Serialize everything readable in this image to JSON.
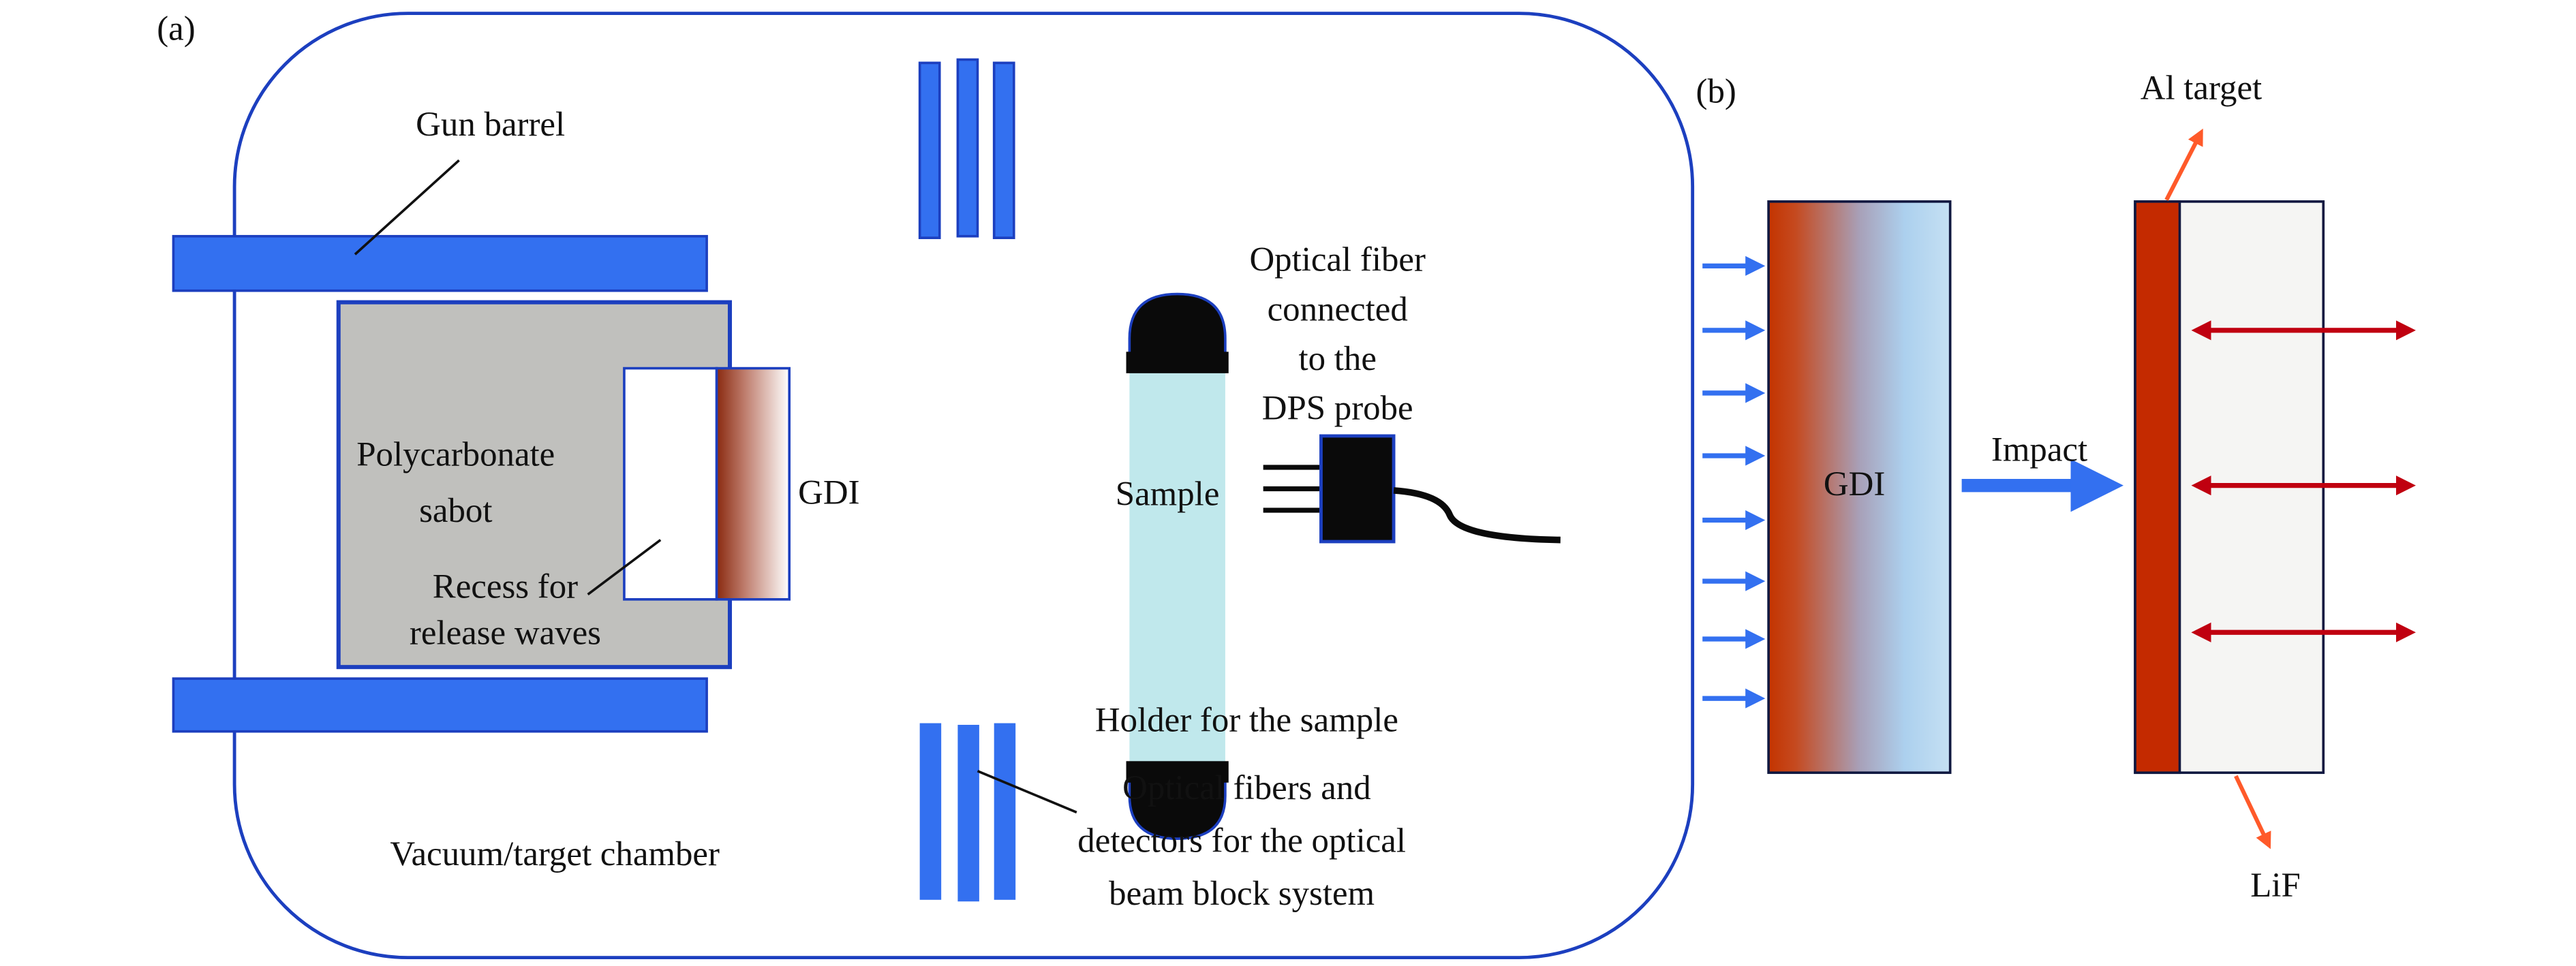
{
  "panel_a": {
    "label": "(a)",
    "gun_barrel": "Gun barrel",
    "sabot_line1": "Polycarbonate",
    "sabot_line2": "sabot",
    "recess_line1": "Recess for",
    "recess_line2": "release waves",
    "gdi": "GDI",
    "sample": "Sample",
    "fiber_line1": "Optical fiber",
    "fiber_line2": "connected",
    "fiber_line3": "to the",
    "fiber_line4": "DPS probe",
    "holder": "Holder for the sample",
    "detectors_line1": "Optical fibers and",
    "detectors_line2": "detectors for the optical",
    "detectors_line3": "beam block system",
    "chamber": "Vacuum/target chamber"
  },
  "panel_b": {
    "label": "(b)",
    "gdi": "GDI",
    "impact": "Impact",
    "al_target": "Al target",
    "lif": "LiF"
  },
  "colors": {
    "blue": "#3370f0",
    "outline": "#1c3fbf",
    "sabot": "#c0c0bd",
    "sample": "#c0e8ec",
    "al": "#c42a00",
    "lif": "#f5f5f3",
    "wave_arrow": "#c00010",
    "leader": "#ff5a2a"
  }
}
